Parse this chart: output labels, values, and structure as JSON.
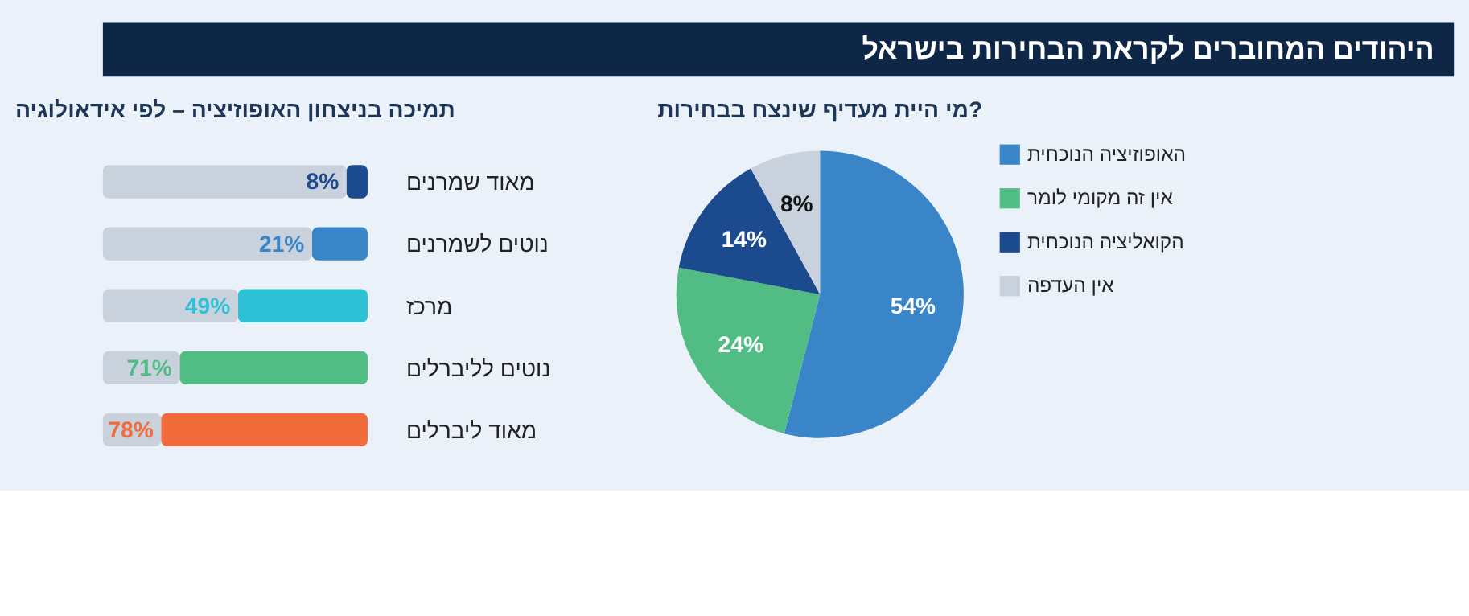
{
  "chart_data": [
    {
      "type": "pie",
      "title": "מי היית מעדיף שינצח בבחירות?",
      "annotations": [
        "היהודים המחוברים לקראת הבחירות בישראל"
      ],
      "categories": [
        "האופוזיציה הנוכחית",
        "אין זה מקומי לומר",
        "הקואליציה הנוכחית",
        "אין העדפה"
      ],
      "values": [
        54,
        24,
        14,
        8
      ],
      "colors": [
        "#3a85c8",
        "#52bc85",
        "#1b4a8f",
        "#c8d1dc"
      ],
      "value_labels": [
        "54%",
        "24%",
        "14%",
        "8%"
      ],
      "legend": "right"
    },
    {
      "type": "bar",
      "orientation": "horizontal",
      "stacked": true,
      "title": "תמיכה בניצחון האופוזיציה – לפי אידאולוגיה",
      "categories": [
        "מאוד שמרנים",
        "נוטים לשמרנים",
        "מרכז",
        "נוטים לליברלים",
        "מאוד ליברלים"
      ],
      "xlim": [
        100,
        0
      ],
      "tick_labels": "y",
      "series": [
        {
          "colors": [
            "#1b4a8f",
            "#3a85c8",
            "#2ec1d6",
            "#52bc85",
            "#f26b3a"
          ],
          "values": [
            8,
            21,
            49,
            71,
            78
          ],
          "value_labels": [
            "8%",
            "21%",
            "49%",
            "71%",
            "78%"
          ]
        },
        {
          "color": "#c8d1dc",
          "values": [
            92,
            79,
            51,
            29,
            22
          ]
        }
      ]
    }
  ]
}
